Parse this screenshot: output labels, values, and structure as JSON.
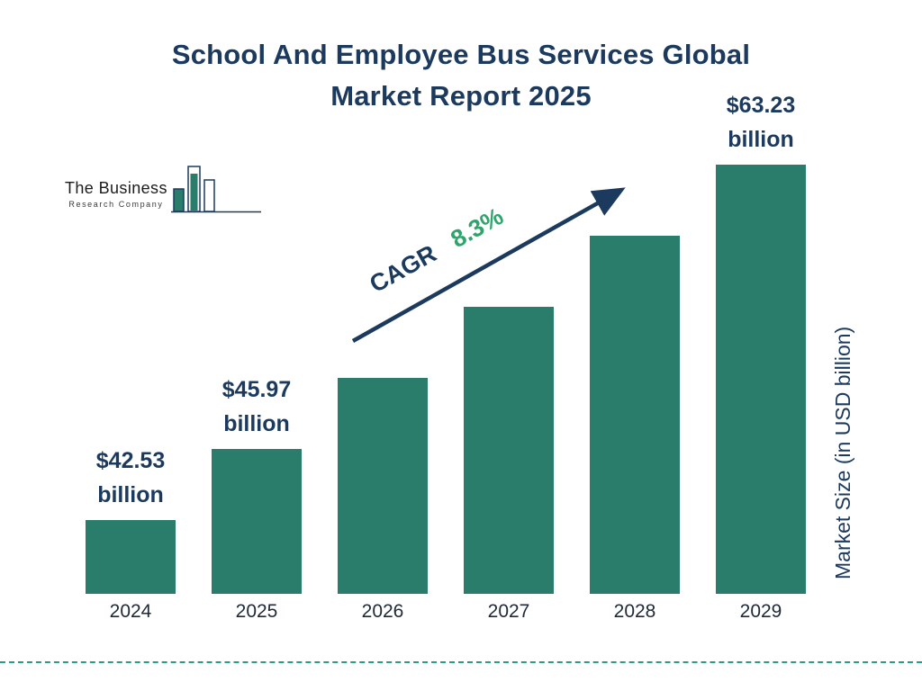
{
  "header": {
    "title_line1": "School And Employee Bus Services Global",
    "title_line2": "Market Report 2025"
  },
  "logo": {
    "line1": "The Business",
    "line2": "Research Company"
  },
  "chart_data": {
    "type": "bar",
    "title": "School And Employee Bus Services Global Market Report 2025",
    "categories": [
      "2024",
      "2025",
      "2026",
      "2027",
      "2028",
      "2029"
    ],
    "values": [
      42.53,
      45.97,
      49.78,
      53.91,
      58.39,
      63.23
    ],
    "labeled_categories": [
      "2024",
      "2025",
      "2029"
    ],
    "bar_labels": {
      "2024": {
        "line1": "$42.53",
        "line2": "billion"
      },
      "2025": {
        "line1": "$45.97",
        "line2": "billion"
      },
      "2029": {
        "line1": "$63.23",
        "line2": "billion"
      }
    },
    "ylabel": "Market Size (in USD billion)",
    "xlabel": "",
    "cagr": {
      "label": "CAGR",
      "value": "8.3%"
    },
    "grid": false,
    "legend": "none",
    "ylim": [
      0,
      70
    ],
    "colors": {
      "bar": "#2a7d6b",
      "navy": "#1c3a5e",
      "green": "#2fa46c",
      "dashed_line": "#2f9a86",
      "axis_text": "#1f2937"
    }
  }
}
